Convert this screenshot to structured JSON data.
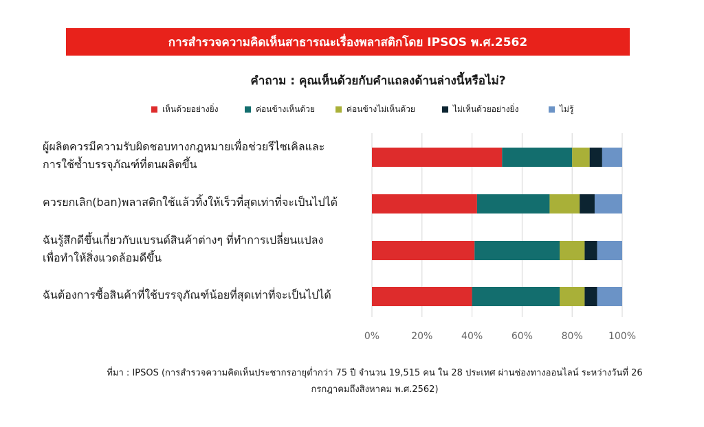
{
  "banner": {
    "title": "การสำรวจความคิดเห็นสาธารณะเรื่องพลาสติกโดย IPSOS พ.ศ.2562"
  },
  "question": "คำถาม : คุณเห็นด้วยกับคำแถลงด้านล่างนี้หรือไม่?",
  "source": {
    "line1": "ที่มา : IPSOS (การสำรวจความคิดเห็นประชากรอายุต่ำกว่า 75 ปี จำนวน 19,515 คน ใน 28 ประเทศ ผ่านช่องทางออนไลน์ ระหว่างวันที่ 26",
    "line2": "กรกฎาคมถึงสิงหาคม พ.ศ.2562)"
  },
  "chart_data": {
    "type": "bar",
    "orientation": "horizontal",
    "stacked": true,
    "title": "",
    "legend_position": "top",
    "xlim": [
      0,
      100
    ],
    "x_ticks": [
      "0%",
      "20%",
      "40%",
      "60%",
      "80%",
      "100%"
    ],
    "categories": [
      [
        "ผู้ผลิตควรมีความรับผิดชอบทางกฎหมายเพื่อช่วยรีไซเคิลและ",
        "การใช้ซ้ำบรรจุภัณฑ์ที่ตนผลิตขึ้น"
      ],
      [
        "ควรยกเลิก(ban)พลาสติกใช้แล้วทิ้งให้เร็วที่สุดเท่าที่จะเป็นไปได้"
      ],
      [
        "ฉันรู้สึกดีขึ้นเกี่ยวกับแบรนด์สินค้าต่างๆ ที่ทำการเปลี่ยนแปลง",
        "เพื่อทำให้สิ่งแวดล้อมดีขึ้น"
      ],
      [
        "ฉันต้องการซื้อสินค้าที่ใช้บรรจุภัณฑ์น้อยที่สุดเท่าที่จะเป็นไปได้"
      ]
    ],
    "series": [
      {
        "name": "เห็นด้วยอย่างยิ่ง",
        "color": "#de2c2c",
        "values": [
          52,
          42,
          41,
          40
        ]
      },
      {
        "name": "ค่อนข้างเห็นด้วย",
        "color": "#136e6e",
        "values": [
          28,
          29,
          34,
          35
        ]
      },
      {
        "name": "ค่อนข้างไม่เห็นด้วย",
        "color": "#a9b038",
        "values": [
          7,
          12,
          10,
          10
        ]
      },
      {
        "name": "ไม่เห็นด้วยอย่างยิ่ง",
        "color": "#0c2431",
        "values": [
          5,
          6,
          5,
          5
        ]
      },
      {
        "name": "ไม่รู้",
        "color": "#6b93c6",
        "values": [
          8,
          11,
          10,
          10
        ]
      }
    ]
  }
}
